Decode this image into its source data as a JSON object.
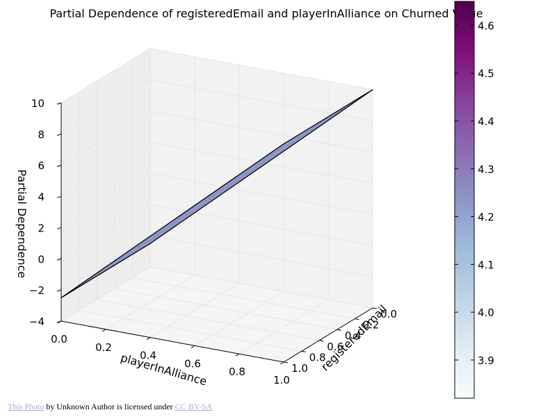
{
  "chart_data": {
    "type": "surface",
    "title": "Partial Dependence of registeredEmail and playerInAlliance on Churned Value",
    "xlabel": "playerInAlliance",
    "ylabel": "registeredEmail",
    "zlabel": "Partial Dependence",
    "x_ticks": [
      "0.0",
      "0.2",
      "0.4",
      "0.6",
      "0.8",
      "1.0"
    ],
    "y_ticks": [
      "0.0",
      "0.2",
      "0.4",
      "0.6",
      "0.8",
      "1.0"
    ],
    "z_ticks": [
      "−4",
      "−2",
      "0",
      "2",
      "4",
      "6",
      "8",
      "10"
    ],
    "xlim": [
      0,
      1
    ],
    "ylim": [
      0,
      1
    ],
    "zlim": [
      -4,
      10
    ],
    "surface": {
      "corners": [
        {
          "playerInAlliance": 0.0,
          "registeredEmail": 0.0,
          "value": -2.5
        },
        {
          "playerInAlliance": 1.0,
          "registeredEmail": 0.0,
          "value": 10.0
        },
        {
          "playerInAlliance": 0.0,
          "registeredEmail": 1.0,
          "value": -2.5
        },
        {
          "playerInAlliance": 1.0,
          "registeredEmail": 1.0,
          "value": 10.0
        }
      ],
      "color": "#8c97c6",
      "edge_color": "#000000"
    },
    "colorbar": {
      "ticks": [
        "3.9",
        "4.0",
        "4.1",
        "4.2",
        "4.3",
        "4.4",
        "4.5",
        "4.6"
      ],
      "range": [
        3.82,
        4.65
      ],
      "colors": [
        "#f7fcfd",
        "#e0ecf4",
        "#bfd3e6",
        "#9ebcda",
        "#8c96c6",
        "#8c6bb1",
        "#88419d",
        "#810f7c",
        "#4d004b"
      ]
    },
    "grid": true,
    "pane_color": "#f2f2f2"
  },
  "credit": {
    "link_text": "This Photo",
    "middle_text": " by Unknown Author is licensed under ",
    "license_text": "CC BY-SA"
  }
}
